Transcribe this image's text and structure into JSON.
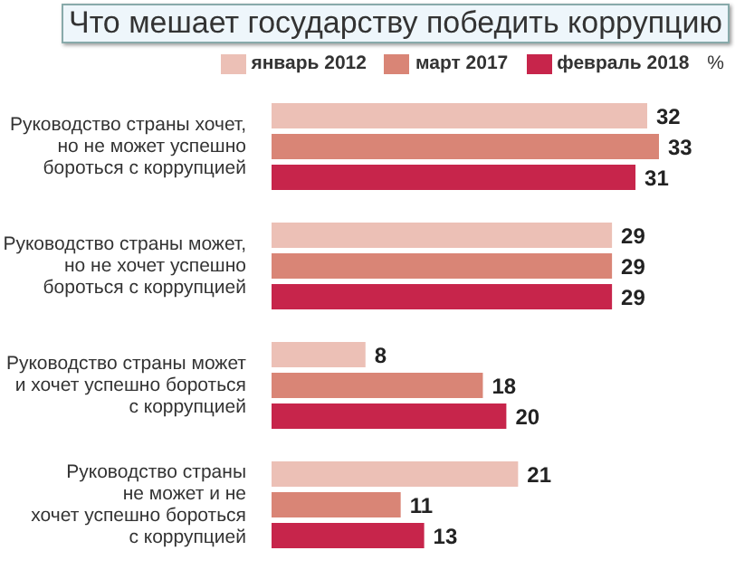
{
  "chart_data": {
    "type": "bar",
    "orientation": "horizontal",
    "title": "Что мешает государству победить коррупцию",
    "legend_title": "%",
    "categories": [
      "Руководство страны хочет,\nно не может успешно\nбороться с коррупцией",
      "Руководство страны может,\nно не хочет успешно\nбороться с коррупцией",
      "Руководство страны может\nи хочет успешно бороться\nс коррупцией",
      "Руководство страны\nне может и не\nхочет успешно бороться\nс коррупцией"
    ],
    "series": [
      {
        "name": "январь 2012",
        "color": "#ecc0b6",
        "values": [
          32,
          29,
          8,
          21
        ]
      },
      {
        "name": "март 2017",
        "color": "#d98576",
        "values": [
          33,
          29,
          18,
          11
        ]
      },
      {
        "name": "февраль 2018",
        "color": "#c7254b",
        "values": [
          31,
          29,
          20,
          13
        ]
      }
    ],
    "data_labels": true,
    "legend": "top right",
    "tick_labels": "y",
    "grid": false
  }
}
